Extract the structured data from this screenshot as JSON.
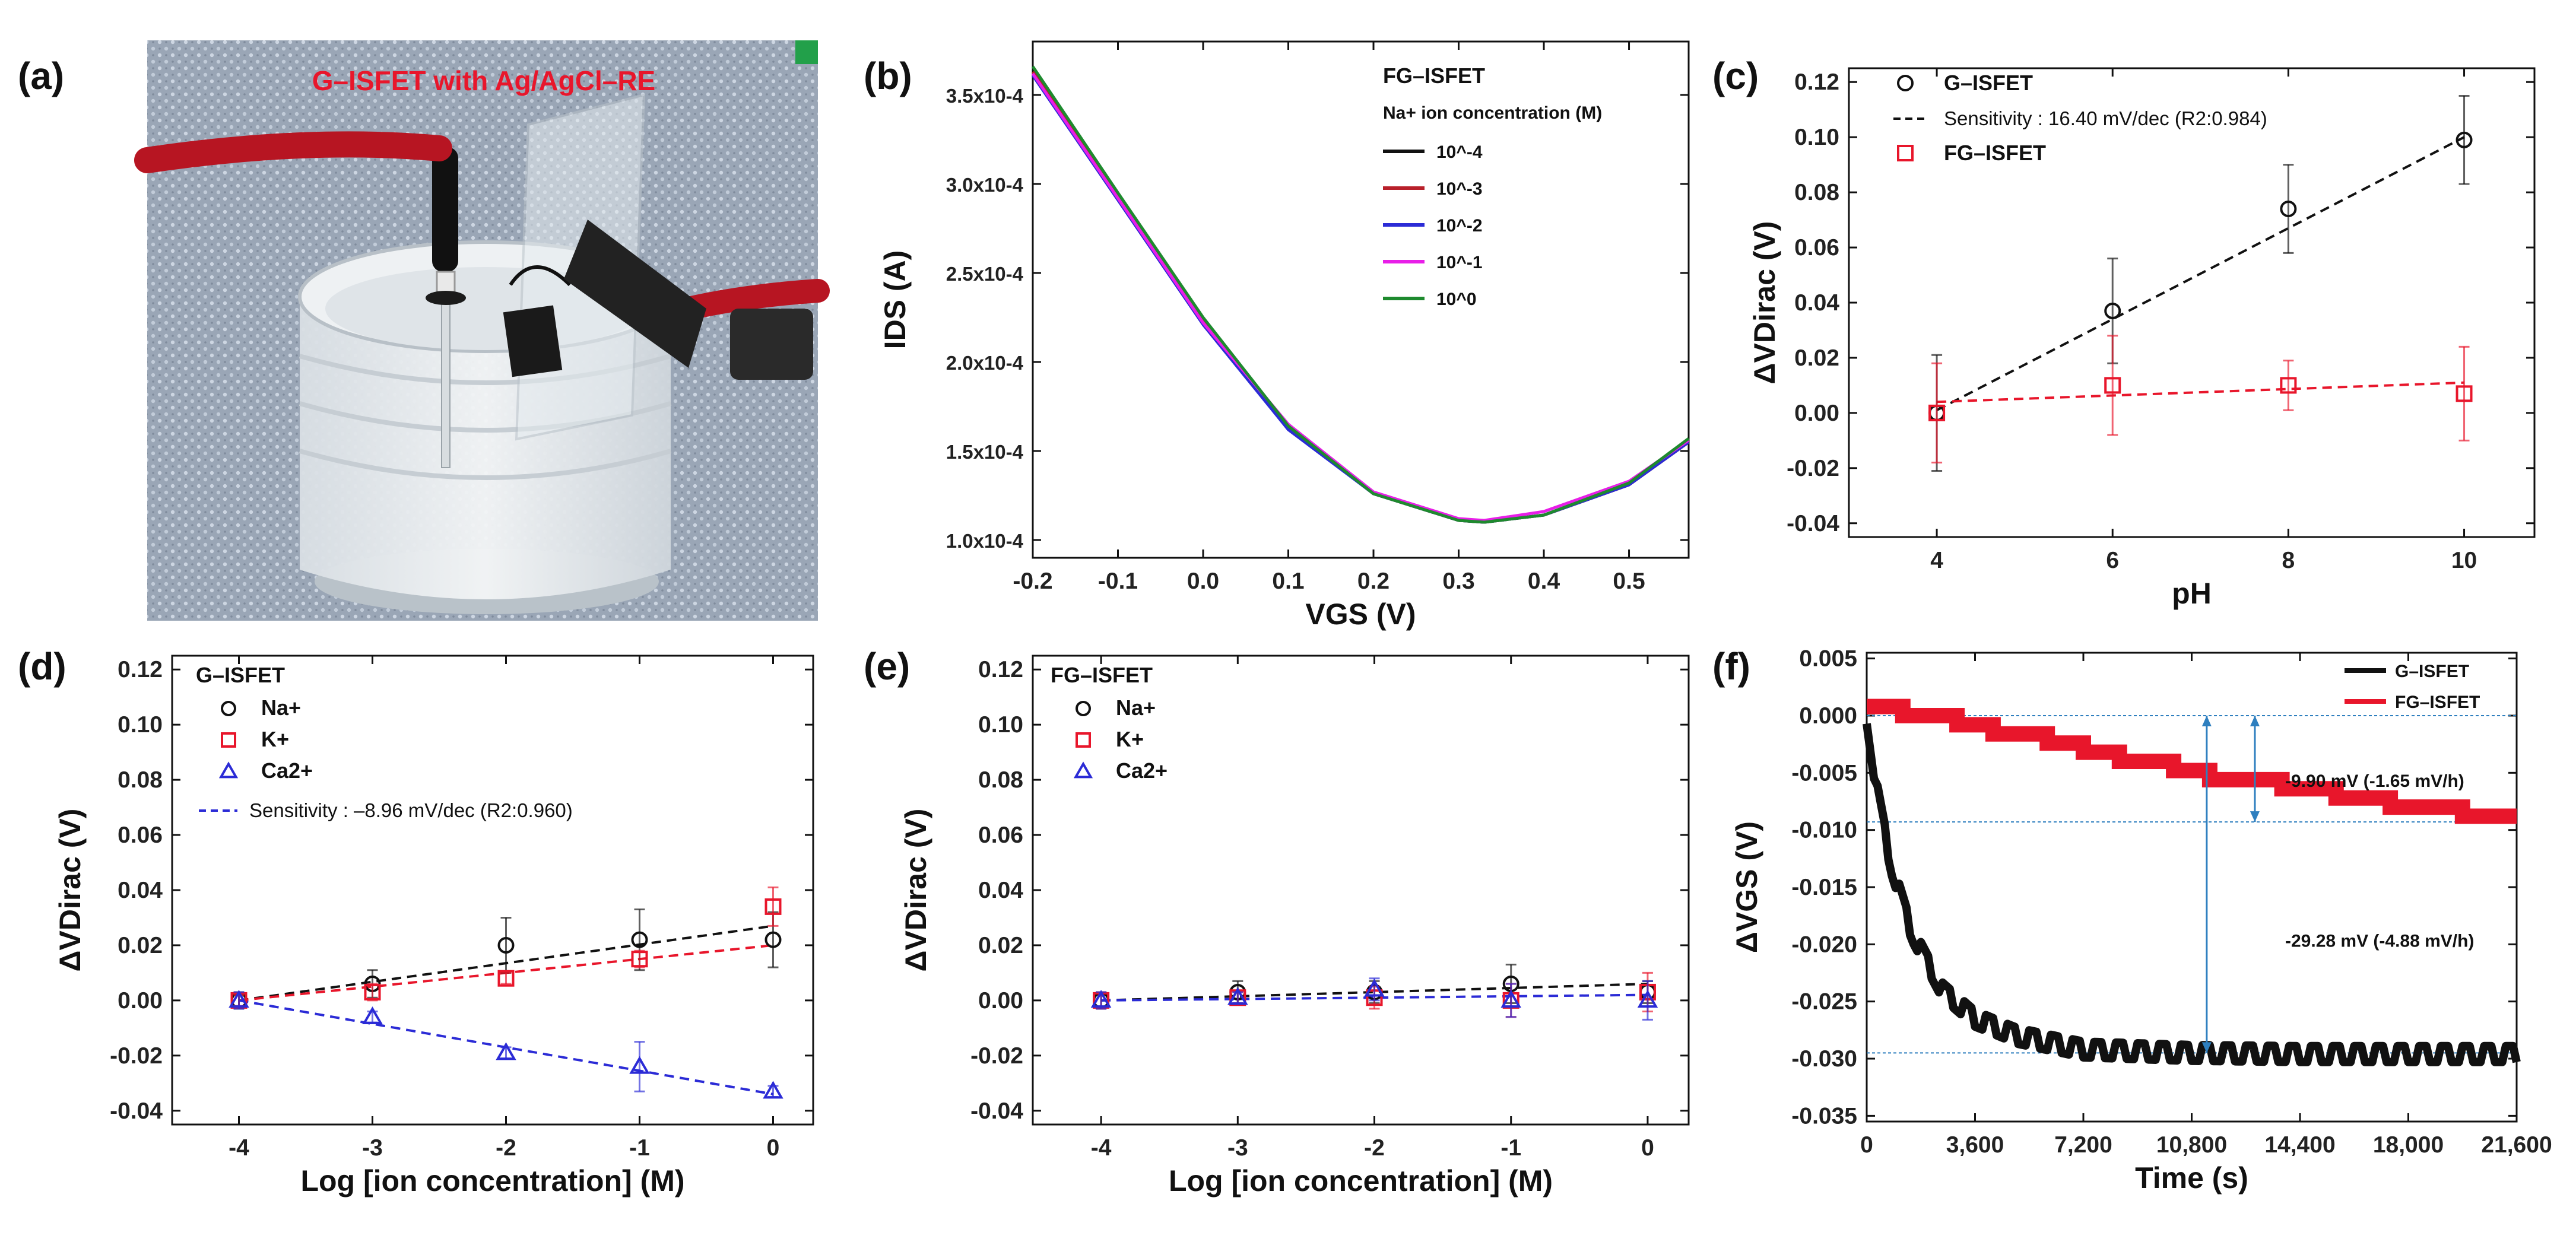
{
  "figure_labels": [
    "(a)",
    "(b)",
    "(c)",
    "(d)",
    "(e)",
    "(f)"
  ],
  "photo": {
    "caption": "G–ISFET with Ag/AgCl–RE"
  },
  "colors": {
    "black": "#111111",
    "red": "#e8162b",
    "blue": "#2b2bd6",
    "magenta": "#e81ee8",
    "green": "#1e8a2e",
    "darkred": "#b8202a",
    "guide": "#2e7fbf"
  },
  "chart_data": [
    {
      "id": "b",
      "type": "line",
      "title": "",
      "legend_title": "FG–ISFET",
      "legend_subtitle": "Na+ ion concentration (M)",
      "xlabel": "VGS (V)",
      "ylabel": "IDS (A)",
      "xlim": [
        -0.2,
        0.57
      ],
      "ylim": [
        9e-05,
        0.00038
      ],
      "xticks": [
        "-0.2",
        "-0.1",
        "0.0",
        "0.1",
        "0.2",
        "0.3",
        "0.4",
        "0.5"
      ],
      "yticks": [
        "1.0x10-4",
        "1.5x10-4",
        "2.0x10-4",
        "2.5x10-4",
        "3.0x10-4",
        "3.5x10-4"
      ],
      "series": [
        {
          "name": "10^-4",
          "color": "#111111",
          "x": [
            -0.2,
            -0.1,
            0.0,
            0.1,
            0.2,
            0.3,
            0.33,
            0.4,
            0.5,
            0.57
          ],
          "y": [
            0.000364,
            0.000294,
            0.000224,
            0.000163,
            0.000126,
            0.000111,
            0.00011,
            0.000114,
            0.000131,
            0.000155
          ]
        },
        {
          "name": "10^-3",
          "color": "#b8202a",
          "x": [
            -0.2,
            -0.1,
            0.0,
            0.1,
            0.2,
            0.3,
            0.33,
            0.4,
            0.5,
            0.57
          ],
          "y": [
            0.000363,
            0.000293,
            0.000223,
            0.000163,
            0.000126,
            0.000111,
            0.00011,
            0.000114,
            0.000131,
            0.000155
          ]
        },
        {
          "name": "10^-2",
          "color": "#2b2bd6",
          "x": [
            -0.2,
            -0.1,
            0.0,
            0.1,
            0.2,
            0.3,
            0.33,
            0.4,
            0.5,
            0.57
          ],
          "y": [
            0.000361,
            0.000291,
            0.000221,
            0.000162,
            0.000126,
            0.000111,
            0.00011,
            0.000114,
            0.000131,
            0.000155
          ]
        },
        {
          "name": "10^-1",
          "color": "#e81ee8",
          "x": [
            -0.2,
            -0.1,
            0.0,
            0.1,
            0.2,
            0.3,
            0.33,
            0.4,
            0.5,
            0.57
          ],
          "y": [
            0.000362,
            0.000292,
            0.000222,
            0.000165,
            0.000127,
            0.000112,
            0.000111,
            0.000116,
            0.000133,
            0.000156
          ]
        },
        {
          "name": "10^0",
          "color": "#1e8a2e",
          "x": [
            -0.2,
            -0.1,
            0.0,
            0.1,
            0.2,
            0.3,
            0.33,
            0.4,
            0.5,
            0.57
          ],
          "y": [
            0.000366,
            0.000295,
            0.000225,
            0.000164,
            0.000126,
            0.000111,
            0.00011,
            0.000114,
            0.000132,
            0.000157
          ]
        }
      ]
    },
    {
      "id": "c",
      "type": "scatter",
      "title": "",
      "xlabel": "pH",
      "ylabel": "ΔVDirac (V)",
      "xlim": [
        3,
        10.8
      ],
      "ylim": [
        -0.045,
        0.125
      ],
      "xticks": [
        "4",
        "6",
        "8",
        "10"
      ],
      "yticks": [
        "-0.04",
        "-0.02",
        "0.00",
        "0.02",
        "0.04",
        "0.06",
        "0.08",
        "0.10",
        "0.12"
      ],
      "series": [
        {
          "name": "G–ISFET",
          "marker": "circle",
          "color": "#111111",
          "x": [
            4,
            6,
            8,
            10
          ],
          "y": [
            0.0,
            0.037,
            0.074,
            0.099
          ],
          "err": [
            0.021,
            0.019,
            0.016,
            0.016
          ]
        },
        {
          "name": "FG–ISFET",
          "marker": "square",
          "color": "#e8162b",
          "x": [
            4,
            6,
            8,
            10
          ],
          "y": [
            0.0,
            0.01,
            0.01,
            0.007
          ],
          "err": [
            0.018,
            0.018,
            0.009,
            0.017
          ]
        }
      ],
      "fits": [
        {
          "label": "Sensitivity : 16.40 mV/dec (R2:0.984)",
          "color": "#111111",
          "x": [
            4,
            10
          ],
          "y": [
            0.001,
            0.1
          ]
        },
        {
          "label": "",
          "color": "#e8162b",
          "x": [
            4,
            10
          ],
          "y": [
            0.004,
            0.011
          ]
        }
      ]
    },
    {
      "id": "d",
      "type": "scatter",
      "title": "",
      "legend_title": "G–ISFET",
      "xlabel": "Log [ion concentration] (M)",
      "ylabel": "ΔVDirac (V)",
      "xlim": [
        -4.5,
        0.3
      ],
      "ylim": [
        -0.045,
        0.125
      ],
      "xticks": [
        "-4",
        "-3",
        "-2",
        "-1",
        "0"
      ],
      "yticks": [
        "-0.04",
        "-0.02",
        "0.00",
        "0.02",
        "0.04",
        "0.06",
        "0.08",
        "0.10",
        "0.12"
      ],
      "series": [
        {
          "name": "Na+",
          "marker": "circle",
          "color": "#111111",
          "x": [
            -4,
            -3,
            -2,
            -1,
            0
          ],
          "y": [
            0.0,
            0.006,
            0.02,
            0.022,
            0.022
          ],
          "err": [
            0.003,
            0.005,
            0.01,
            0.011,
            0.01
          ]
        },
        {
          "name": "K+",
          "marker": "square",
          "color": "#e8162b",
          "x": [
            -4,
            -3,
            -2,
            -1,
            0
          ],
          "y": [
            0.0,
            0.003,
            0.008,
            0.015,
            0.034
          ],
          "err": [
            0.002,
            0.003,
            0.002,
            0.003,
            0.007
          ]
        },
        {
          "name": "Ca2+",
          "marker": "triangle",
          "color": "#2b2bd6",
          "x": [
            -4,
            -3,
            -2,
            -1,
            0
          ],
          "y": [
            0.0,
            -0.006,
            -0.019,
            -0.024,
            -0.033
          ],
          "err": [
            0.003,
            0.002,
            0.002,
            0.009,
            0.002
          ]
        }
      ],
      "fits": [
        {
          "label": "",
          "color": "#111111",
          "x": [
            -4,
            0
          ],
          "y": [
            0.0,
            0.027
          ]
        },
        {
          "label": "",
          "color": "#e8162b",
          "x": [
            -4,
            0
          ],
          "y": [
            0.0,
            0.02
          ]
        },
        {
          "label": "Sensitivity : –8.96 mV/dec (R2:0.960)",
          "color": "#2b2bd6",
          "x": [
            -4,
            0
          ],
          "y": [
            0.0,
            -0.034
          ]
        }
      ]
    },
    {
      "id": "e",
      "type": "scatter",
      "title": "",
      "legend_title": "FG–ISFET",
      "xlabel": "Log [ion concentration] (M)",
      "ylabel": "ΔVDirac (V)",
      "xlim": [
        -4.5,
        0.3
      ],
      "ylim": [
        -0.045,
        0.125
      ],
      "xticks": [
        "-4",
        "-3",
        "-2",
        "-1",
        "0"
      ],
      "yticks": [
        "-0.04",
        "-0.02",
        "0.00",
        "0.02",
        "0.04",
        "0.06",
        "0.08",
        "0.10",
        "0.12"
      ],
      "series": [
        {
          "name": "Na+",
          "marker": "circle",
          "color": "#111111",
          "x": [
            -4,
            -3,
            -2,
            -1,
            0
          ],
          "y": [
            0.0,
            0.003,
            0.003,
            0.006,
            0.003
          ],
          "err": [
            0.003,
            0.004,
            0.004,
            0.007,
            0.004
          ]
        },
        {
          "name": "K+",
          "marker": "square",
          "color": "#e8162b",
          "x": [
            -4,
            -3,
            -2,
            -1,
            0
          ],
          "y": [
            0.0,
            0.001,
            0.001,
            0.0,
            0.003
          ],
          "err": [
            0.003,
            0.002,
            0.004,
            0.006,
            0.007
          ]
        },
        {
          "name": "Ca2+",
          "marker": "triangle",
          "color": "#2b2bd6",
          "x": [
            -4,
            -3,
            -2,
            -1,
            0
          ],
          "y": [
            0.0,
            0.001,
            0.004,
            0.0,
            0.0
          ],
          "err": [
            0.003,
            0.002,
            0.004,
            0.006,
            0.007
          ]
        }
      ],
      "fits": [
        {
          "label": "",
          "color": "#111111",
          "x": [
            -4,
            0
          ],
          "y": [
            0.0,
            0.006
          ]
        },
        {
          "label": "",
          "color": "#2b2bd6",
          "x": [
            -4,
            0
          ],
          "y": [
            0.0,
            0.002
          ]
        }
      ]
    },
    {
      "id": "f",
      "type": "line",
      "title": "",
      "xlabel": "Time (s)",
      "ylabel": "ΔVGS (V)",
      "xlim": [
        0,
        21600
      ],
      "ylim": [
        -0.0355,
        0.0055
      ],
      "xticks": [
        "0",
        "3,600",
        "7,200",
        "10,800",
        "14,400",
        "18,000",
        "21,600"
      ],
      "yticks": [
        "-0.035",
        "-0.030",
        "-0.025",
        "-0.020",
        "-0.015",
        "-0.010",
        "-0.005",
        "0.000",
        "0.005"
      ],
      "series": [
        {
          "name": "G–ISFET",
          "color": "#111111",
          "x": [
            0,
            300,
            800,
            1500,
            2500,
            3600,
            5000,
            7200,
            10800,
            14400,
            18000,
            21600
          ],
          "y": [
            0.0,
            -0.006,
            -0.013,
            -0.019,
            -0.024,
            -0.0265,
            -0.028,
            -0.0292,
            -0.0295,
            -0.0296,
            -0.0296,
            -0.0296
          ]
        },
        {
          "name": "FG–ISFET",
          "color": "#e8162b",
          "x": [
            0,
            3600,
            7200,
            10800,
            14400,
            18000,
            21600
          ],
          "y": [
            0.001,
            -0.001,
            -0.003,
            -0.005,
            -0.0065,
            -0.008,
            -0.009
          ]
        }
      ],
      "annotations": [
        "-9.90 mV (-1.65 mV/h)",
        "-29.28 mV (-4.88 mV/h)"
      ],
      "guides_y": [
        0.0,
        -0.0093,
        -0.0295
      ]
    }
  ]
}
